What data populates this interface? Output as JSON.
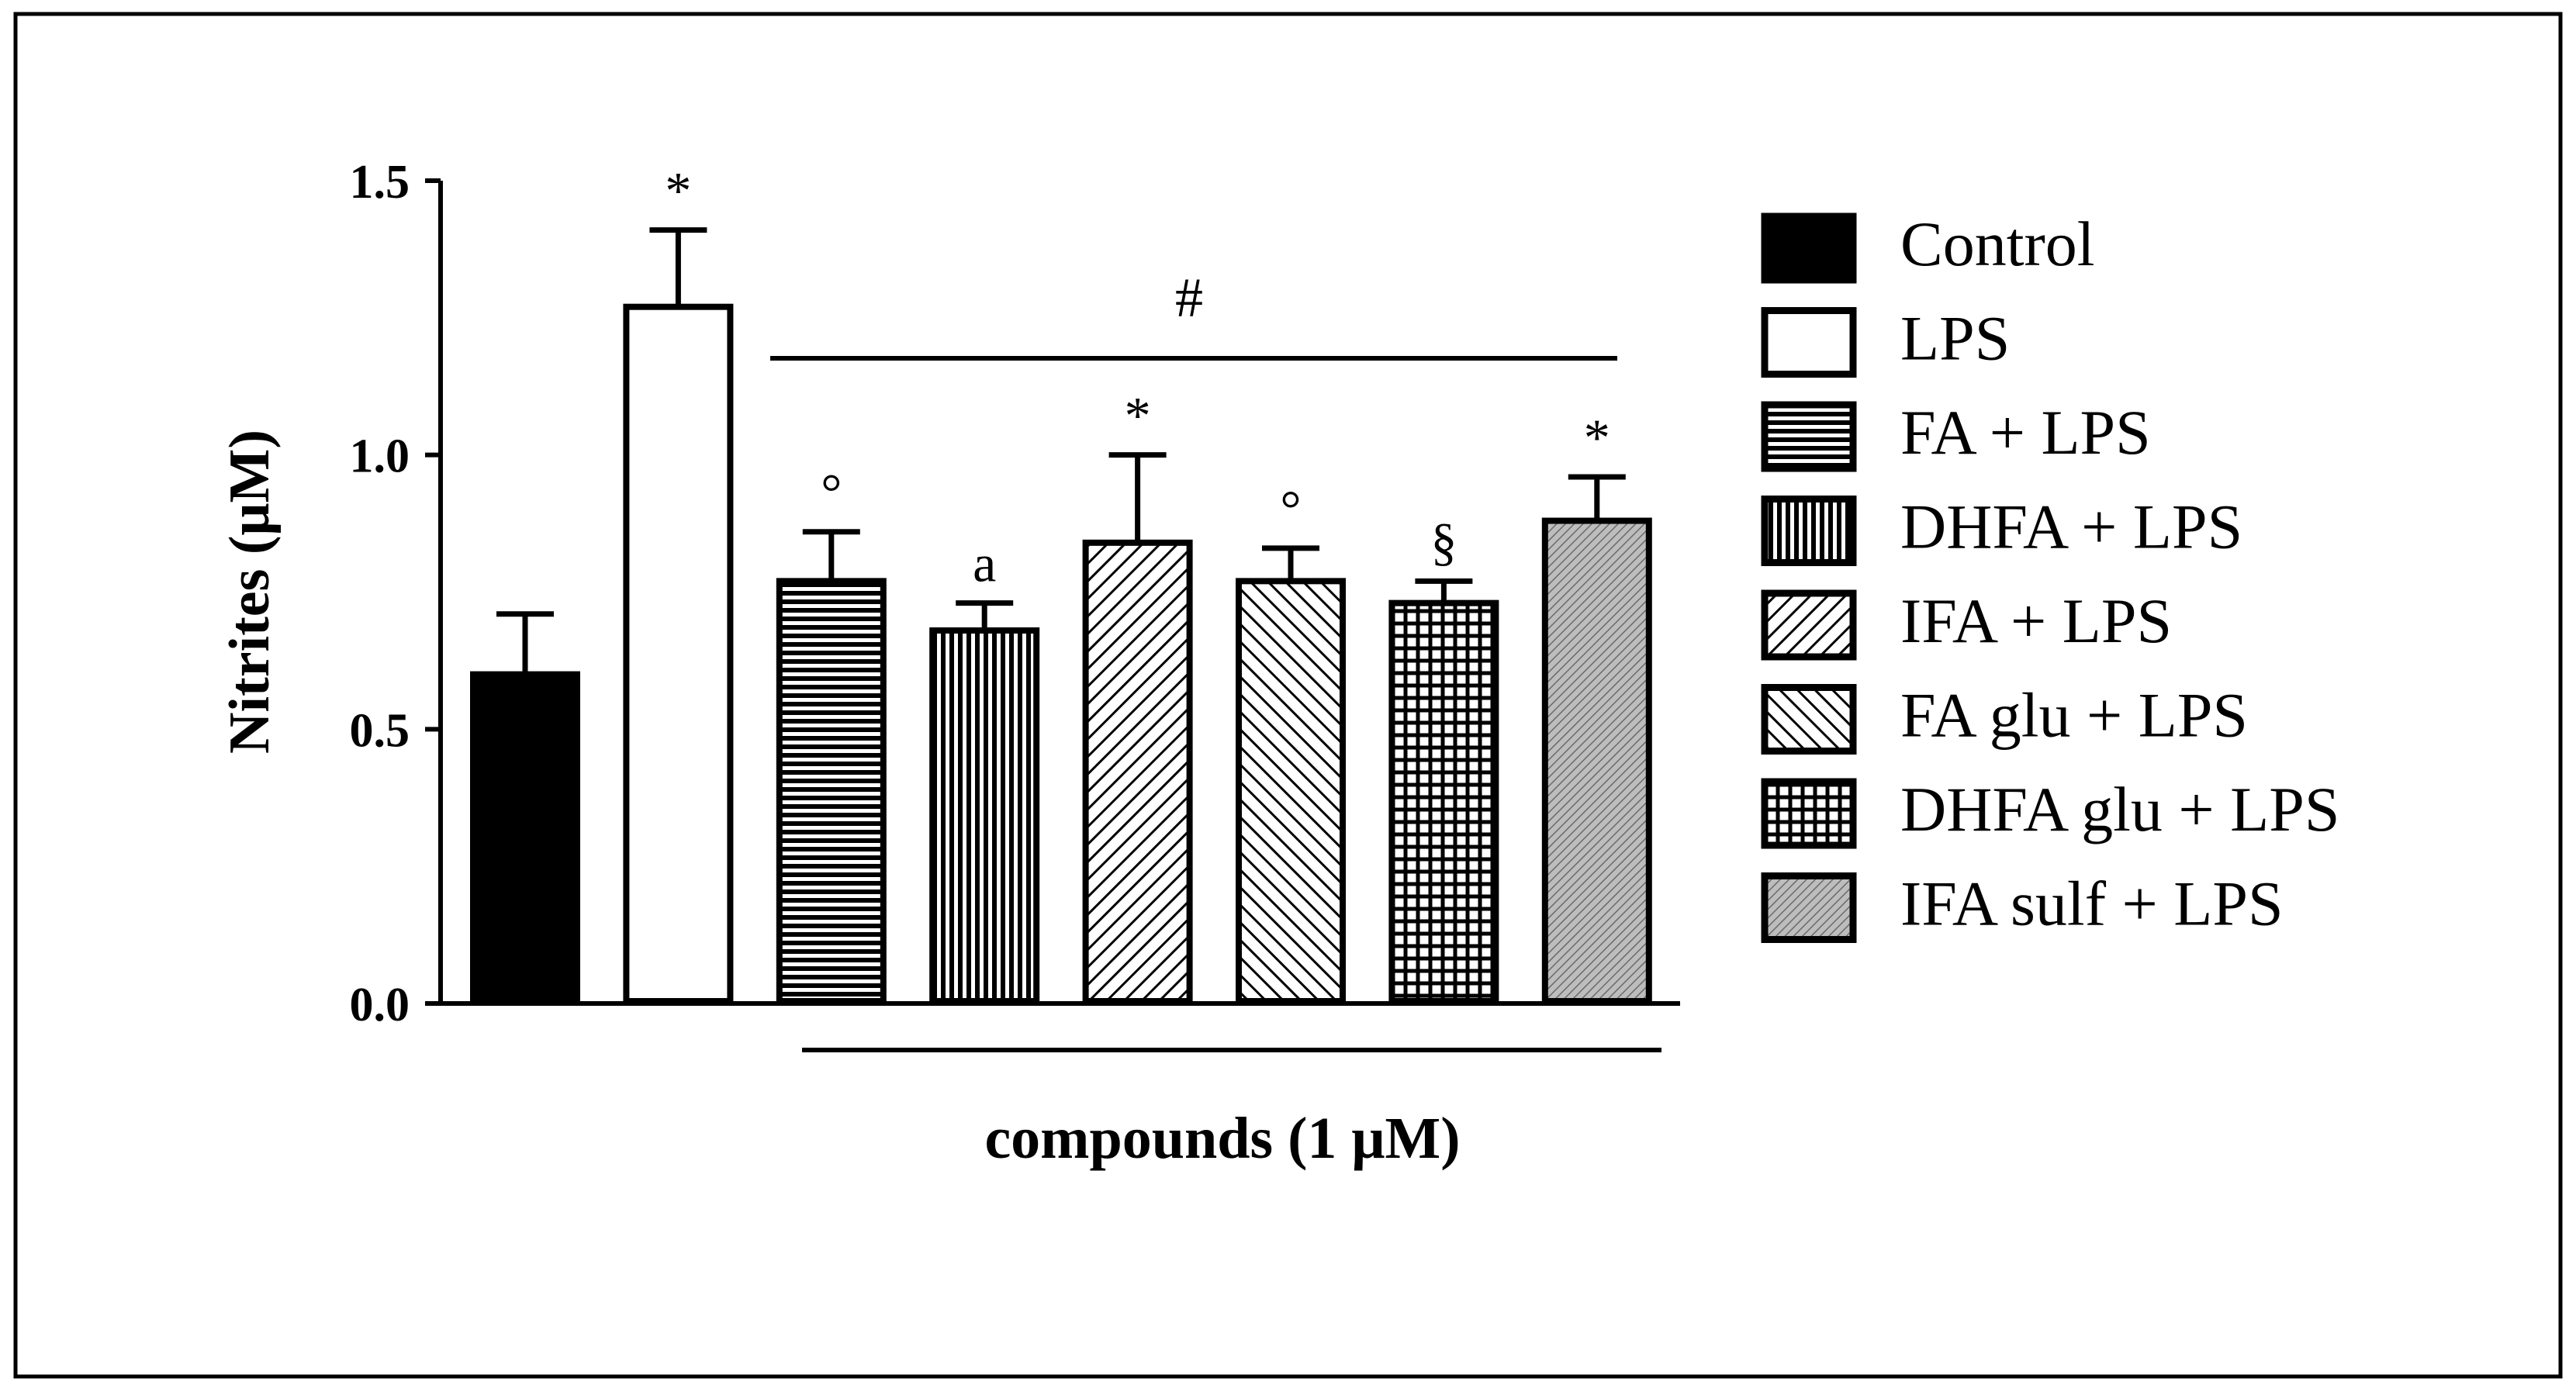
{
  "chart_data": {
    "type": "bar",
    "title": "",
    "xlabel": "compounds (1 μM)",
    "ylabel": "Nitrites (μM)",
    "ylim": [
      0,
      1.5
    ],
    "yticks": [
      0.0,
      0.5,
      1.0,
      1.5
    ],
    "ytick_labels": [
      "0.0",
      "0.5",
      "1.0",
      "1.5"
    ],
    "grid": false,
    "legend_position": "right",
    "categories": [
      "Control",
      "LPS",
      "FA + LPS",
      "DHFA + LPS",
      "IFA + LPS",
      "FA glu + LPS",
      "DHFA glu + LPS",
      "IFA sulf + LPS"
    ],
    "values": [
      0.6,
      1.27,
      0.77,
      0.68,
      0.84,
      0.77,
      0.73,
      0.88
    ],
    "errors": [
      0.11,
      0.14,
      0.09,
      0.05,
      0.16,
      0.06,
      0.04,
      0.08
    ],
    "patterns": [
      "solid",
      "open",
      "hlines",
      "vlines",
      "diag-up",
      "diag-down",
      "grid",
      "dense-diag"
    ],
    "annotations": [
      "",
      "*",
      "°",
      "a",
      "*",
      "°",
      "§",
      "*"
    ],
    "group_marker": "#",
    "group_marker_span": [
      "FA + LPS",
      "IFA sulf + LPS"
    ],
    "compounds_span": [
      "FA + LPS",
      "IFA sulf + LPS"
    ]
  },
  "colors": {
    "ink": "#000000",
    "background": "#ffffff"
  }
}
